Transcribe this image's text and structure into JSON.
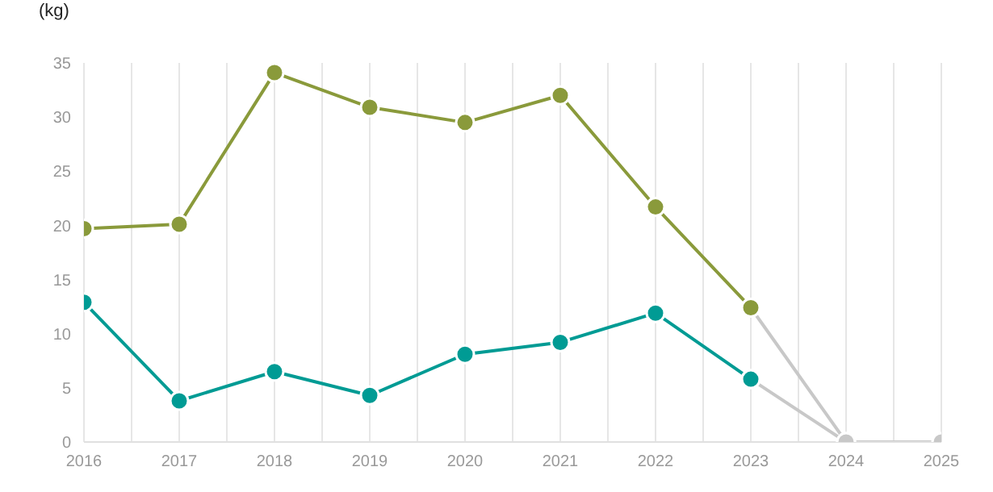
{
  "chart_data": {
    "type": "line",
    "ylabel": "(kg)",
    "x": [
      2016,
      2017,
      2018,
      2019,
      2020,
      2021,
      2022,
      2023,
      2024,
      2025
    ],
    "series": [
      {
        "color": "#c8c8c8",
        "values": [
          null,
          null,
          null,
          null,
          null,
          null,
          null,
          12.4,
          0,
          0
        ]
      },
      {
        "color": "#c8c8c8",
        "values": [
          null,
          null,
          null,
          null,
          null,
          null,
          null,
          5.8,
          0,
          null
        ]
      },
      {
        "color": "#8a9a3b",
        "values": [
          19.7,
          20.1,
          34.1,
          30.9,
          29.5,
          32.0,
          21.7,
          12.4,
          null,
          null
        ]
      },
      {
        "color": "#009b94",
        "values": [
          12.9,
          3.8,
          6.5,
          4.3,
          8.1,
          9.2,
          11.9,
          5.8,
          null,
          null
        ]
      }
    ],
    "xlim": [
      2016,
      2025
    ],
    "xticks": [
      2016,
      {
        "value": 2016.5,
        "label": null
      },
      2017,
      {
        "value": 2017.5,
        "label": null
      },
      2018,
      {
        "value": 2018.5,
        "label": null
      },
      2019,
      {
        "value": 2019.5,
        "label": null
      },
      2020,
      {
        "value": 2020.5,
        "label": null
      },
      2021,
      {
        "value": 2021.5,
        "label": null
      },
      2022,
      {
        "value": 2022.5,
        "label": null
      },
      2023,
      {
        "value": 2023.5,
        "label": null
      },
      2024,
      {
        "value": 2024.5,
        "label": null
      },
      2025
    ],
    "ylim": [
      0,
      35
    ],
    "yticks": [
      0,
      5,
      10,
      15,
      20,
      25,
      30,
      35
    ],
    "grid": "x",
    "marker": "circle",
    "line_style": "solid"
  }
}
